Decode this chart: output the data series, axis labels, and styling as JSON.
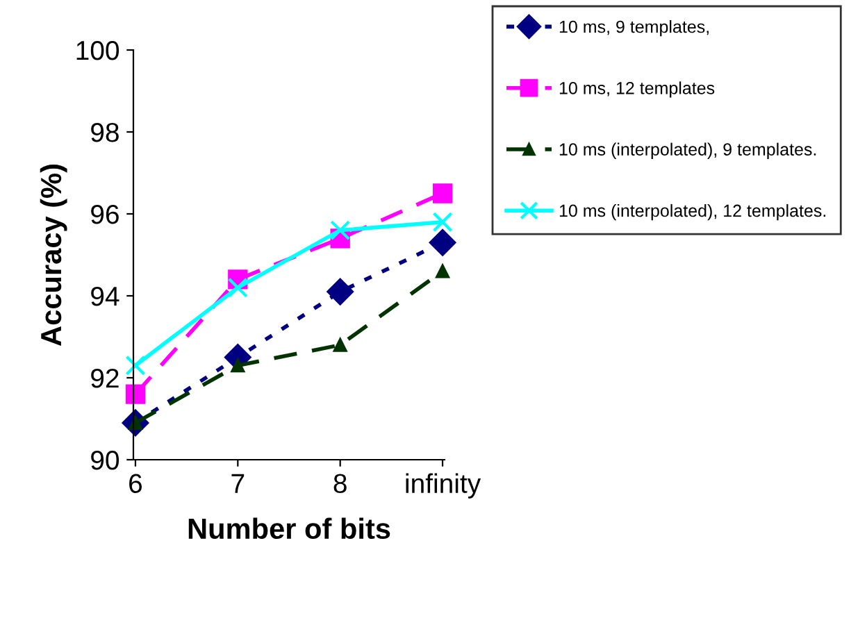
{
  "chart_data": {
    "type": "line",
    "xlabel": "Number of bits",
    "ylabel": "Accuracy (%)",
    "categories": [
      "6",
      "7",
      "8",
      "infinity"
    ],
    "ylim": [
      90,
      100
    ],
    "yticks": [
      90,
      92,
      94,
      96,
      98,
      100
    ],
    "grid": false,
    "legend": "right",
    "series": [
      {
        "name": "10 ms, 9 templates,",
        "color": "#000080",
        "marker": "diamond",
        "line_style": "dotted",
        "values": [
          90.9,
          92.5,
          94.1,
          95.3
        ]
      },
      {
        "name": "10 ms, 12 templates",
        "color": "#ff00ff",
        "marker": "square",
        "line_style": "dashed",
        "values": [
          91.6,
          94.4,
          95.4,
          96.5
        ]
      },
      {
        "name": "10 ms (interpolated), 9 templates.",
        "color": "#003300",
        "marker": "triangle",
        "line_style": "dashed",
        "values": [
          90.9,
          92.3,
          92.8,
          94.6
        ]
      },
      {
        "name": "10 ms (interpolated), 12 templates.",
        "color": "#00ffff",
        "marker": "cross",
        "line_style": "solid",
        "values": [
          92.3,
          94.2,
          95.6,
          95.8
        ]
      }
    ]
  }
}
